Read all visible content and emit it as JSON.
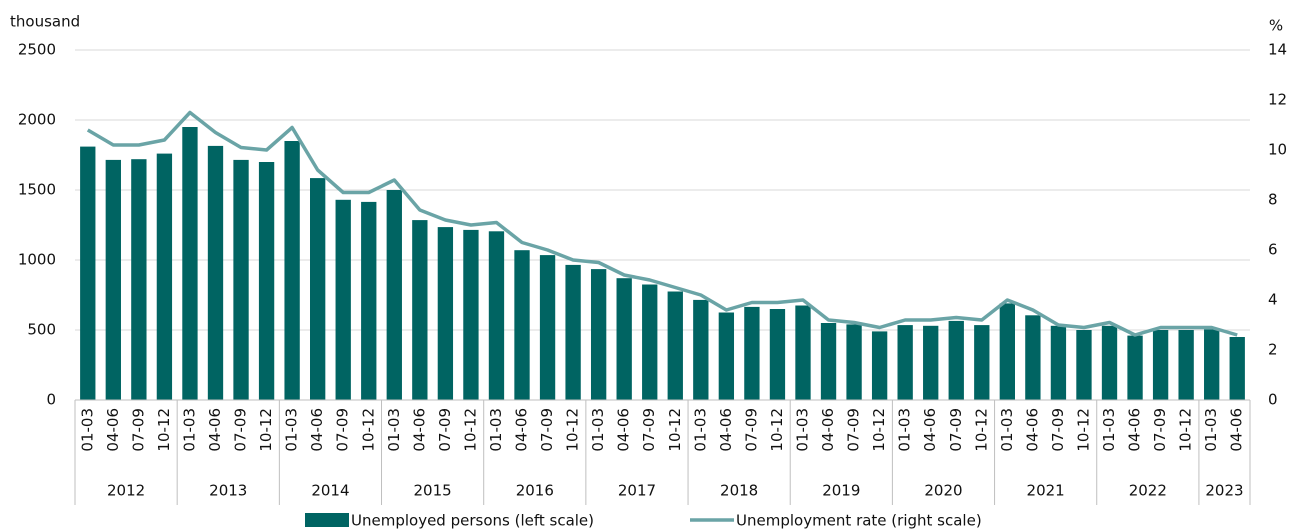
{
  "chart_data": {
    "type": "bar_line",
    "y_label": "thousand",
    "y2_label": "%",
    "categories": [
      "01-03",
      "04-06",
      "07-09",
      "10-12",
      "01-03",
      "04-06",
      "07-09",
      "10-12",
      "01-03",
      "04-06",
      "07-09",
      "10-12",
      "01-03",
      "04-06",
      "07-09",
      "10-12",
      "01-03",
      "04-06",
      "07-09",
      "10-12",
      "01-03",
      "04-06",
      "07-09",
      "10-12",
      "01-03",
      "04-06",
      "07-09",
      "10-12",
      "01-03",
      "04-06",
      "07-09",
      "10-12",
      "01-03",
      "04-06",
      "07-09",
      "10-12",
      "01-03",
      "04-06",
      "07-09",
      "10-12",
      "01-03",
      "04-06",
      "07-09",
      "10-12",
      "01-03",
      "04-06"
    ],
    "x_groups": [
      "2012",
      "2013",
      "2014",
      "2015",
      "2016",
      "2017",
      "2018",
      "2019",
      "2020",
      "2021",
      "2022",
      "2023"
    ],
    "series": [
      {
        "name": "Unemployed persons (left scale)",
        "type": "bar",
        "color": "#006462",
        "axis": "y",
        "values": [
          1810,
          1715,
          1720,
          1760,
          1950,
          1815,
          1715,
          1700,
          1850,
          1585,
          1430,
          1415,
          1500,
          1285,
          1235,
          1215,
          1205,
          1070,
          1035,
          965,
          935,
          870,
          825,
          775,
          715,
          625,
          665,
          650,
          675,
          550,
          540,
          490,
          535,
          530,
          565,
          535,
          690,
          605,
          530,
          500,
          530,
          460,
          500,
          500,
          505,
          450
        ]
      },
      {
        "name": "Unemployment rate (right scale)",
        "type": "line",
        "color": "#6aa4a6",
        "axis": "y2",
        "values": [
          10.8,
          10.2,
          10.2,
          10.4,
          11.5,
          10.7,
          10.1,
          10.0,
          10.9,
          9.2,
          8.3,
          8.3,
          8.8,
          7.6,
          7.2,
          7.0,
          7.1,
          6.3,
          6.0,
          5.6,
          5.5,
          5.0,
          4.8,
          4.5,
          4.2,
          3.6,
          3.9,
          3.9,
          4.0,
          3.2,
          3.1,
          2.9,
          3.2,
          3.2,
          3.3,
          3.2,
          4.0,
          3.6,
          3.0,
          2.9,
          3.1,
          2.6,
          2.9,
          2.9,
          2.9,
          2.6
        ]
      }
    ],
    "ylim": [
      0,
      2500
    ],
    "yticks": [
      0,
      500,
      1000,
      1500,
      2000,
      2500
    ],
    "y2lim": [
      0,
      14
    ],
    "y2ticks": [
      0,
      2,
      4,
      6,
      8,
      10,
      12,
      14
    ],
    "grid": true,
    "legend": "bottom"
  }
}
